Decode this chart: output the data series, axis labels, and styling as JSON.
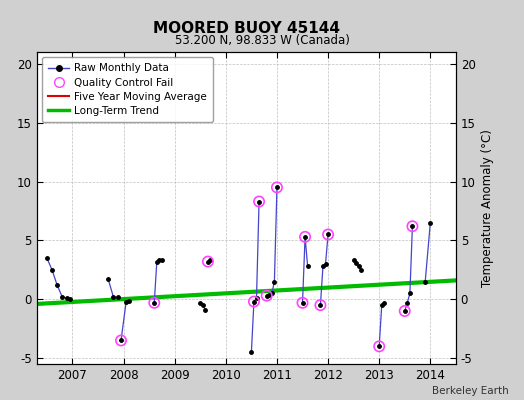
{
  "title": "MOORED BUOY 45144",
  "subtitle": "53.200 N, 98.833 W (Canada)",
  "ylabel": "Temperature Anomaly (°C)",
  "credit": "Berkeley Earth",
  "xlim": [
    2006.3,
    2014.5
  ],
  "ylim": [
    -5.5,
    21
  ],
  "yticks": [
    -5,
    0,
    5,
    10,
    15,
    20
  ],
  "xticks": [
    2007,
    2008,
    2009,
    2010,
    2011,
    2012,
    2013,
    2014
  ],
  "segments": [
    {
      "x": [
        2006.5,
        2006.6,
        2006.7,
        2006.8,
        2006.9,
        2006.95
      ],
      "y": [
        3.5,
        2.5,
        1.2,
        0.2,
        0.1,
        0.0
      ]
    },
    {
      "x": [
        2007.7,
        2007.8,
        2007.9
      ],
      "y": [
        1.7,
        0.2,
        0.15
      ]
    },
    {
      "x": [
        2007.95,
        2008.05,
        2008.1
      ],
      "y": [
        -3.5,
        -0.2,
        -0.15
      ]
    },
    {
      "x": [
        2008.6,
        2008.65,
        2008.7,
        2008.75
      ],
      "y": [
        -0.3,
        3.2,
        3.3,
        3.35
      ]
    },
    {
      "x": [
        2009.5,
        2009.55,
        2009.6
      ],
      "y": [
        -0.3,
        -0.5,
        -0.9
      ]
    },
    {
      "x": [
        2009.65,
        2009.7
      ],
      "y": [
        3.2,
        3.3
      ]
    },
    {
      "x": [
        2010.5,
        2010.55,
        2010.6,
        2010.65
      ],
      "y": [
        -4.5,
        -0.2,
        0.1,
        8.3
      ]
    },
    {
      "x": [
        2010.8,
        2010.85,
        2010.9,
        2010.95,
        2011.0
      ],
      "y": [
        0.3,
        0.4,
        0.5,
        1.5,
        9.5
      ]
    },
    {
      "x": [
        2011.5,
        2011.55,
        2011.6
      ],
      "y": [
        -0.3,
        5.3,
        2.8
      ]
    },
    {
      "x": [
        2011.85,
        2011.9,
        2011.95,
        2012.0
      ],
      "y": [
        -0.5,
        2.8,
        3.0,
        5.5
      ]
    },
    {
      "x": [
        2012.5,
        2012.55,
        2012.6,
        2012.65
      ],
      "y": [
        3.3,
        3.1,
        2.8,
        2.5
      ]
    },
    {
      "x": [
        2013.0,
        2013.05,
        2013.1
      ],
      "y": [
        -4.0,
        -0.5,
        -0.3
      ]
    },
    {
      "x": [
        2013.5,
        2013.55,
        2013.6,
        2013.65
      ],
      "y": [
        -1.0,
        -0.3,
        0.5,
        6.2
      ]
    },
    {
      "x": [
        2013.9,
        2014.0
      ],
      "y": [
        1.5,
        6.5
      ]
    }
  ],
  "qc_x": [
    2007.95,
    2008.6,
    2009.65,
    2010.55,
    2010.65,
    2010.8,
    2011.0,
    2011.5,
    2011.55,
    2011.85,
    2012.0,
    2013.0,
    2013.5,
    2013.65
  ],
  "qc_y": [
    -3.5,
    -0.3,
    3.2,
    -0.2,
    8.3,
    0.3,
    9.5,
    -0.3,
    5.3,
    -0.5,
    5.5,
    -4.0,
    -1.0,
    6.2
  ],
  "trend_x": [
    2006.3,
    2014.5
  ],
  "trend_y": [
    -0.4,
    1.6
  ],
  "line_color": "#4444cc",
  "dot_color": "#000000",
  "qc_color": "#ff44ff",
  "trend_color": "#00bb00",
  "moving_avg_color": "#dd0000",
  "bg_plot": "#ffffff",
  "bg_fig": "#d0d0d0"
}
